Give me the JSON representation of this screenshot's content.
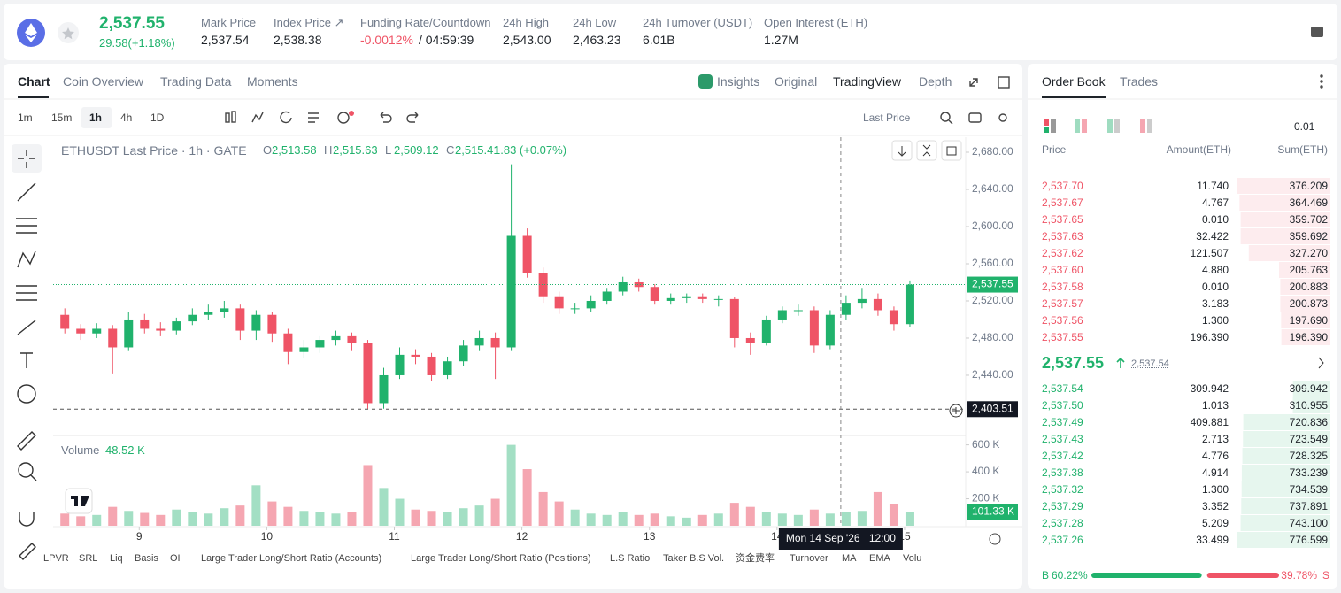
{
  "header": {
    "price": "2,537.55",
    "change": "29.58(+1.18%)",
    "stats": [
      {
        "label": "Mark Price",
        "value": "2,537.54"
      },
      {
        "label": "Index Price ↗",
        "value": "2,538.38"
      },
      {
        "label": "Funding Rate/Countdown",
        "value": "-0.0012%",
        "value2": "/ 04:59:39"
      },
      {
        "label": "24h High",
        "value": "2,543.00"
      },
      {
        "label": "24h Low",
        "value": "2,463.23"
      },
      {
        "label": "24h Turnover (USDT)",
        "value": "6.01B"
      },
      {
        "label": "Open Interest (ETH)",
        "value": "1.27M"
      }
    ]
  },
  "chart_tabs": [
    "Chart",
    "Coin Overview",
    "Trading Data",
    "Moments"
  ],
  "view_tabs": [
    "Insights",
    "Original",
    "TradingView",
    "Depth"
  ],
  "intervals": [
    "1m",
    "15m",
    "1h",
    "4h",
    "1D"
  ],
  "price_source": "Last Price",
  "chart_data": {
    "type": "candlestick",
    "symbol": "ETHUSDT Last Price · 1h · GATE",
    "ohlc": [
      {
        "key": "O",
        "value": "2,513.58"
      },
      {
        "key": "H",
        "value": "2,515.63"
      },
      {
        "key": "L",
        "value": "2,509.12"
      },
      {
        "key": "C",
        "value": "2,515.41"
      }
    ],
    "change": "1.83 (+0.07%)",
    "x": [
      -14,
      -11,
      -8,
      -5,
      -2,
      1,
      4,
      7,
      10,
      13,
      16,
      19,
      22,
      25,
      28,
      31,
      34,
      37,
      40,
      43,
      46,
      49,
      52,
      55,
      58,
      61,
      64,
      67,
      70,
      73,
      76,
      79,
      82,
      85,
      88,
      91,
      94,
      97,
      100,
      103,
      106,
      109,
      112,
      115,
      118,
      121,
      124,
      127,
      130,
      133,
      136,
      139,
      142,
      145
    ],
    "candles": [
      [
        2505,
        2512,
        2485,
        2490
      ],
      [
        2490,
        2495,
        2478,
        2485
      ],
      [
        2485,
        2496,
        2480,
        2490
      ],
      [
        2490,
        2494,
        2442,
        2470
      ],
      [
        2470,
        2508,
        2466,
        2500
      ],
      [
        2500,
        2506,
        2485,
        2490
      ],
      [
        2490,
        2497,
        2482,
        2488
      ],
      [
        2488,
        2502,
        2484,
        2498
      ],
      [
        2498,
        2512,
        2494,
        2505
      ],
      [
        2505,
        2516,
        2500,
        2508
      ],
      [
        2508,
        2520,
        2502,
        2512
      ],
      [
        2512,
        2516,
        2478,
        2488
      ],
      [
        2488,
        2510,
        2478,
        2505
      ],
      [
        2505,
        2508,
        2476,
        2485
      ],
      [
        2485,
        2490,
        2452,
        2465
      ],
      [
        2465,
        2478,
        2458,
        2470
      ],
      [
        2470,
        2482,
        2464,
        2478
      ],
      [
        2478,
        2488,
        2472,
        2482
      ],
      [
        2482,
        2486,
        2466,
        2475
      ],
      [
        2475,
        2478,
        2403.51,
        2410
      ],
      [
        2410,
        2448,
        2404,
        2440
      ],
      [
        2440,
        2470,
        2436,
        2462
      ],
      [
        2462,
        2468,
        2452,
        2460
      ],
      [
        2460,
        2464,
        2434,
        2440
      ],
      [
        2440,
        2460,
        2436,
        2455
      ],
      [
        2455,
        2478,
        2450,
        2472
      ],
      [
        2472,
        2488,
        2466,
        2480
      ],
      [
        2480,
        2486,
        2436,
        2470
      ],
      [
        2470,
        2667,
        2466,
        2590
      ],
      [
        2590,
        2598,
        2545,
        2550
      ],
      [
        2550,
        2556,
        2518,
        2525
      ],
      [
        2525,
        2530,
        2506,
        2512
      ],
      [
        2512,
        2518,
        2506,
        2512
      ],
      [
        2512,
        2526,
        2508,
        2520
      ],
      [
        2520,
        2534,
        2516,
        2530
      ],
      [
        2530,
        2546,
        2526,
        2540
      ],
      [
        2540,
        2544,
        2530,
        2535
      ],
      [
        2535,
        2538,
        2516,
        2520
      ],
      [
        2520,
        2528,
        2516,
        2523
      ],
      [
        2523,
        2528,
        2518,
        2525
      ],
      [
        2525,
        2528,
        2518,
        2522
      ],
      [
        2522,
        2526,
        2514,
        2522
      ],
      [
        2522,
        2524,
        2470,
        2480
      ],
      [
        2480,
        2486,
        2462,
        2475
      ],
      [
        2475,
        2504,
        2472,
        2500
      ],
      [
        2500,
        2514,
        2496,
        2510
      ],
      [
        2510,
        2516,
        2504,
        2510
      ],
      [
        2510,
        2514,
        2464,
        2472
      ],
      [
        2472,
        2510,
        2468,
        2505
      ],
      [
        2505,
        2526,
        2500,
        2518
      ],
      [
        2518,
        2534,
        2512,
        2522
      ],
      [
        2522,
        2528,
        2504,
        2510
      ],
      [
        2510,
        2514,
        2488,
        2495
      ],
      [
        2495,
        2542,
        2492,
        2537.55
      ]
    ],
    "up_color": "#20b26c",
    "down_color": "#ef5466",
    "xlim": [
      -16.2,
      155.5
    ],
    "xticks": [
      {
        "value": 0,
        "label": "9"
      },
      {
        "value": 24,
        "label": "10"
      },
      {
        "value": 48,
        "label": "11"
      },
      {
        "value": 72,
        "label": "12"
      },
      {
        "value": 96,
        "label": "13"
      },
      {
        "value": 120,
        "label": "14"
      },
      {
        "value": 144,
        "label": "15"
      }
    ],
    "ylim": [
      2375.2,
      2696.2
    ],
    "yticks": [
      {
        "value": 2440,
        "label": "2,440.00"
      },
      {
        "value": 2480,
        "label": "2,480.00"
      },
      {
        "value": 2520,
        "label": "2,520.00"
      },
      {
        "value": 2560,
        "label": "2,560.00"
      },
      {
        "value": 2600,
        "label": "2,600.00"
      },
      {
        "value": 2640,
        "label": "2,640.00"
      },
      {
        "value": 2680,
        "label": "2,680.00"
      }
    ],
    "grid": false,
    "last_price": {
      "value": 2537.55,
      "label": "2,537.55"
    },
    "crosshair": {
      "value": 2403.51,
      "label": "2,403.51",
      "x": 132,
      "date": "Mon 14 Sep '26",
      "time": "12:00"
    },
    "volume": {
      "title": "Volume",
      "hover_label": "48.52 K",
      "values": [
        90,
        70,
        80,
        140,
        110,
        95,
        80,
        120,
        100,
        90,
        130,
        150,
        300,
        180,
        140,
        110,
        100,
        90,
        100,
        450,
        280,
        200,
        120,
        110,
        100,
        130,
        150,
        200,
        600,
        420,
        250,
        180,
        120,
        90,
        80,
        100,
        80,
        90,
        70,
        60,
        80,
        90,
        170,
        140,
        100,
        90,
        80,
        120,
        90,
        100,
        110,
        250,
        160,
        101.33
      ],
      "ylim": [
        0,
        650
      ],
      "yticks": [
        {
          "value": 200,
          "label": "200 K"
        },
        {
          "value": 400,
          "label": "400 K"
        },
        {
          "value": 600,
          "label": "600 K"
        }
      ],
      "last_label": "101.33 K"
    }
  },
  "indicators": [
    "LPVR",
    "SRL",
    "Liq",
    "Basis",
    "OI",
    "Large Trader Long/Short Ratio (Accounts)",
    "Large Trader Long/Short Ratio (Positions)",
    "L.S Ratio",
    "Taker B.S Vol.",
    "资金费率",
    "Turnover",
    "MA",
    "EMA",
    "Volu"
  ],
  "order_book": {
    "tabs": [
      "Order Book",
      "Trades"
    ],
    "precision": "0.01",
    "headers": [
      "Price",
      "Amount(ETH)",
      "Sum(ETH)"
    ],
    "asks": [
      [
        "2,537.70",
        "11.740",
        "376.209"
      ],
      [
        "2,537.67",
        "4.767",
        "364.469"
      ],
      [
        "2,537.65",
        "0.010",
        "359.702"
      ],
      [
        "2,537.63",
        "32.422",
        "359.692"
      ],
      [
        "2,537.62",
        "121.507",
        "327.270"
      ],
      [
        "2,537.60",
        "4.880",
        "205.763"
      ],
      [
        "2,537.58",
        "0.010",
        "200.883"
      ],
      [
        "2,537.57",
        "3.183",
        "200.873"
      ],
      [
        "2,537.56",
        "1.300",
        "197.690"
      ],
      [
        "2,537.55",
        "196.390",
        "196.390"
      ]
    ],
    "last_price": "2,537.55",
    "mark_price": "2,537.54",
    "bids": [
      [
        "2,537.54",
        "309.942",
        "309.942"
      ],
      [
        "2,537.50",
        "1.013",
        "310.955"
      ],
      [
        "2,537.49",
        "409.881",
        "720.836"
      ],
      [
        "2,537.43",
        "2.713",
        "723.549"
      ],
      [
        "2,537.42",
        "4.776",
        "728.325"
      ],
      [
        "2,537.38",
        "4.914",
        "733.239"
      ],
      [
        "2,537.32",
        "1.300",
        "734.539"
      ],
      [
        "2,537.29",
        "3.352",
        "737.891"
      ],
      [
        "2,537.28",
        "5.209",
        "743.100"
      ],
      [
        "2,537.26",
        "33.499",
        "776.599"
      ]
    ],
    "buy_label": "B",
    "sell_label": "S",
    "buy_ratio": {
      "value": 60.22,
      "label": "60.22%"
    },
    "sell_ratio": {
      "value": 39.78,
      "label": "39.78%"
    }
  }
}
